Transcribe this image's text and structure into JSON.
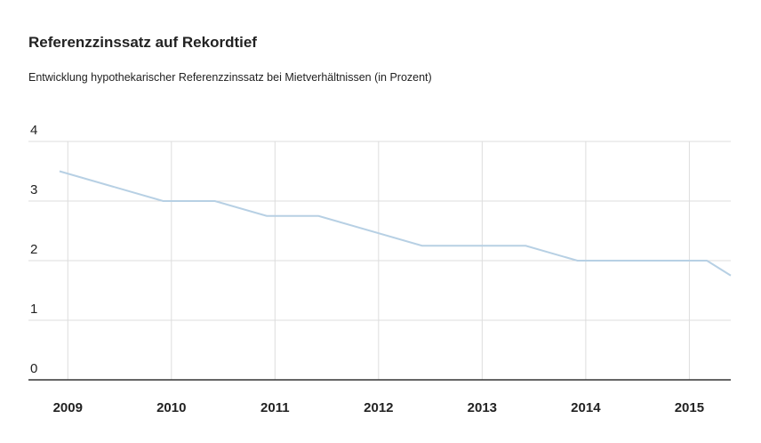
{
  "chart_data": {
    "type": "line",
    "title": "Referenzzinssatz auf Rekordtief",
    "subtitle": "Entwicklung hypothekarischer Referenzzinssatz bei Mietverhältnissen (in Prozent)",
    "x": [
      2008.92,
      2009.92,
      2010.42,
      2010.92,
      2011.42,
      2012.42,
      2013.42,
      2013.92,
      2015.17,
      2015.4
    ],
    "series": [
      {
        "name": "Referenzzinssatz",
        "color": "#b7d0e4",
        "values": [
          3.5,
          3.0,
          3.0,
          2.75,
          2.75,
          2.25,
          2.25,
          2.0,
          2.0,
          1.75
        ]
      }
    ],
    "xlim": [
      2008.62,
      2015.4
    ],
    "xticks": [
      2009,
      2010,
      2011,
      2012,
      2013,
      2014,
      2015
    ],
    "ylim": [
      0,
      4
    ],
    "yticks": [
      0,
      1,
      2,
      3,
      4
    ],
    "grid": true
  }
}
